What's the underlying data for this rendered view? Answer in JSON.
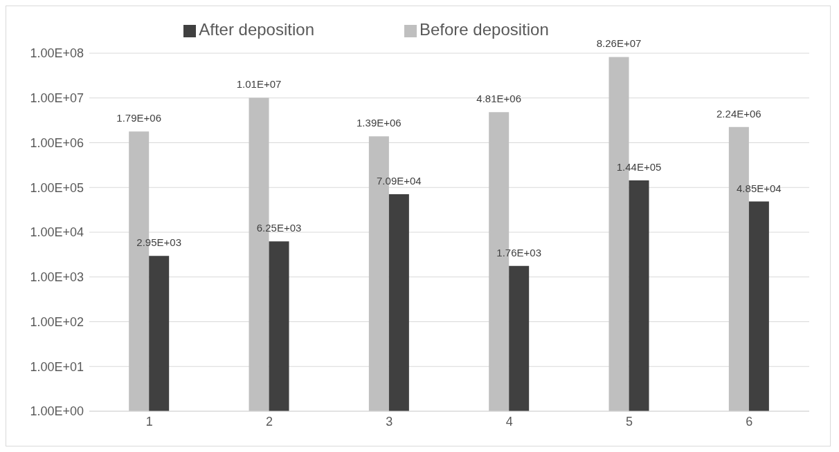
{
  "chart_data": {
    "type": "bar",
    "categories": [
      "1",
      "2",
      "3",
      "4",
      "5",
      "6"
    ],
    "series": [
      {
        "name": "Before deposition",
        "color": "#bfbfbf",
        "values": [
          1790000,
          10100000,
          1390000,
          4810000,
          82600000,
          2240000
        ],
        "value_labels": [
          "1.79E+06",
          "1.01E+07",
          "1.39E+06",
          "4.81E+06",
          "8.26E+07",
          "2.24E+06"
        ]
      },
      {
        "name": "After deposition",
        "color": "#404040",
        "values": [
          2950,
          6250,
          70900,
          1760,
          144000,
          48500
        ],
        "value_labels": [
          "2.95E+03",
          "6.25E+03",
          "7.09E+04",
          "1.76E+03",
          "1.44E+05",
          "4.85E+04"
        ]
      }
    ],
    "log": "y",
    "ylim": [
      1,
      100000000
    ],
    "yticks": [
      {
        "value": 1,
        "label": "1.00E+00"
      },
      {
        "value": 10,
        "label": "1.00E+01"
      },
      {
        "value": 100,
        "label": "1.00E+02"
      },
      {
        "value": 1000,
        "label": "1.00E+03"
      },
      {
        "value": 10000,
        "label": "1.00E+04"
      },
      {
        "value": 100000,
        "label": "1.00E+05"
      },
      {
        "value": 1000000,
        "label": "1.00E+06"
      },
      {
        "value": 10000000,
        "label": "1.00E+07"
      },
      {
        "value": 100000000,
        "label": "1.00E+08"
      }
    ],
    "grid": "y",
    "legend": "top"
  }
}
